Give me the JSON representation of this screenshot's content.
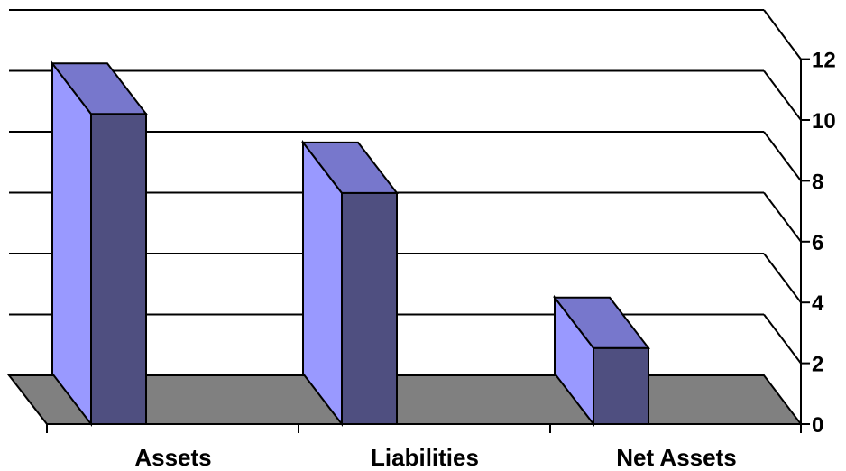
{
  "chart_data": {
    "type": "bar",
    "title": "",
    "xlabel": "",
    "ylabel": "",
    "categories": [
      "Assets",
      "Liabilities",
      "Net Assets"
    ],
    "values": [
      10.2,
      7.6,
      2.5
    ],
    "ylim": [
      0,
      12
    ],
    "yticks": [
      "0",
      "2",
      "4",
      "6",
      "8",
      "10",
      "12"
    ],
    "grid": true,
    "legend": "none",
    "projection": "3d-perspective",
    "colors": {
      "bar_front": "#4f4f80",
      "bar_side": "#9999ff",
      "bar_top": "#7777cc",
      "floor": "#808080",
      "gridline": "#000000"
    }
  }
}
